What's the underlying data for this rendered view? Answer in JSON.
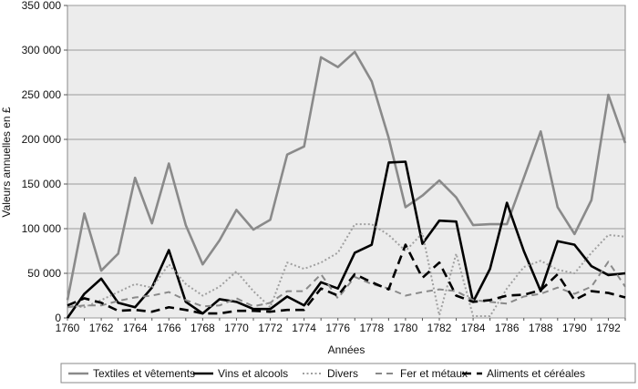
{
  "chart_data": {
    "type": "line",
    "title": "",
    "xlabel": "Années",
    "ylabel": "Valeurs annuelles en £",
    "ylim": [
      0,
      350000
    ],
    "xlim": [
      1760,
      1793
    ],
    "y_ticks": [
      "0",
      "50 000",
      "100 000",
      "150 000",
      "200 000",
      "250 000",
      "300 000",
      "350 000"
    ],
    "x_ticks": [
      "1760",
      "1762",
      "1764",
      "1766",
      "1768",
      "1770",
      "1772",
      "1774",
      "1776",
      "1778",
      "1780",
      "1782",
      "1784",
      "1786",
      "1788",
      "1790",
      "1792"
    ],
    "grid": true,
    "legend_position": "bottom",
    "x": [
      1760,
      1761,
      1762,
      1763,
      1764,
      1765,
      1766,
      1767,
      1768,
      1769,
      1770,
      1771,
      1772,
      1773,
      1774,
      1775,
      1776,
      1777,
      1778,
      1779,
      1780,
      1781,
      1782,
      1783,
      1784,
      1785,
      1786,
      1787,
      1788,
      1789,
      1790,
      1791,
      1792,
      1793
    ],
    "series": [
      {
        "name": "Textiles et vêtements",
        "color": "#8a8a8a",
        "dash": "solid",
        "values": [
          20000,
          117000,
          53000,
          72000,
          157000,
          106000,
          173000,
          104000,
          60000,
          87000,
          121000,
          99000,
          110000,
          183000,
          192000,
          292000,
          281000,
          298000,
          265000,
          202000,
          124000,
          137000,
          154000,
          135000,
          104000,
          105000,
          105000,
          157000,
          209000,
          124000,
          94000,
          132000,
          250000,
          196000
        ]
      },
      {
        "name": "Vins et alcools",
        "color": "#000000",
        "dash": "solid",
        "values": [
          0,
          27000,
          44000,
          17000,
          12000,
          34000,
          76000,
          18000,
          5000,
          21000,
          18000,
          10000,
          10000,
          24000,
          14000,
          40000,
          33000,
          73000,
          82000,
          174000,
          175000,
          83000,
          109000,
          108000,
          18000,
          55000,
          129000,
          75000,
          30000,
          86000,
          82000,
          58000,
          48000,
          50000
        ]
      },
      {
        "name": "Divers",
        "color": "#a0a0a0",
        "dash": "dot",
        "values": [
          14000,
          12000,
          20000,
          29000,
          38000,
          34000,
          60000,
          38000,
          25000,
          35000,
          52000,
          30000,
          12000,
          62000,
          55000,
          62000,
          73000,
          105000,
          105000,
          93000,
          75000,
          95000,
          3000,
          72000,
          2000,
          2000,
          33000,
          57000,
          64000,
          54000,
          50000,
          73000,
          93000,
          91000
        ]
      },
      {
        "name": "Fer et métaux",
        "color": "#8a8a8a",
        "dash": "dash",
        "values": [
          12000,
          14000,
          14000,
          19000,
          23000,
          25000,
          29000,
          20000,
          13000,
          14000,
          22000,
          13000,
          17000,
          30000,
          30000,
          49000,
          22000,
          46000,
          38000,
          33000,
          25000,
          29000,
          32000,
          30000,
          20000,
          18000,
          16000,
          24000,
          27000,
          34000,
          27000,
          35000,
          63000,
          35000
        ]
      },
      {
        "name": "Aliments et céréales",
        "color": "#000000",
        "dash": "longdash",
        "values": [
          14000,
          22000,
          17000,
          8000,
          9000,
          7000,
          12000,
          9000,
          5000,
          5000,
          8000,
          8000,
          7000,
          9000,
          9000,
          33000,
          25000,
          49000,
          40000,
          32000,
          82000,
          45000,
          62000,
          25000,
          18000,
          20000,
          25000,
          26000,
          31000,
          49000,
          20000,
          30000,
          28000,
          23000
        ]
      }
    ]
  }
}
